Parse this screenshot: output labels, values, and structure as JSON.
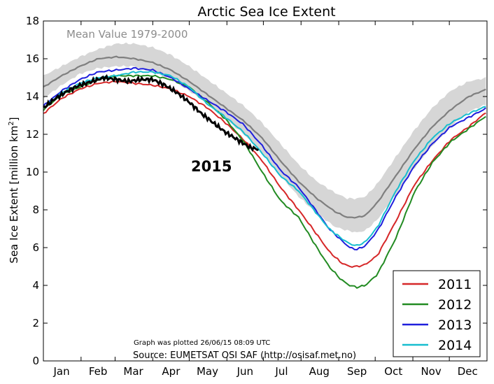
{
  "chart_data": {
    "type": "line",
    "title": "Arctic Sea Ice Extent",
    "ylabel": "Sea Ice Extent [million km",
    "ylabel_sup": "2",
    "ylabel_end": "]",
    "ylim": [
      0,
      18
    ],
    "yticks": [
      "0",
      "2",
      "4",
      "6",
      "8",
      "10",
      "12",
      "14",
      "16",
      "18"
    ],
    "xlim": [
      0,
      365
    ],
    "month_labels": [
      "Jan",
      "Feb",
      "Mar",
      "Apr",
      "May",
      "Jun",
      "Jul",
      "Aug",
      "Sep",
      "Oct",
      "Nov",
      "Dec"
    ],
    "month_label_days": [
      15,
      45,
      74,
      105,
      135,
      166,
      196,
      227,
      258,
      288,
      319,
      349
    ],
    "month_boundary_days": [
      31,
      59,
      90,
      120,
      151,
      181,
      212,
      243,
      273,
      304,
      334
    ],
    "grid": false,
    "legend_position": "lower-right",
    "mean_label": "Mean Value 1979-2000",
    "annotation_2015": "2015",
    "plotted_note": "Graph was plotted 26/06/15 08:09 UTC",
    "source_note": "Source: EUMETSAT OSI SAF (http://osisaf.met.no)",
    "band": {
      "days": [
        0,
        15,
        30,
        45,
        60,
        75,
        90,
        105,
        120,
        135,
        150,
        165,
        180,
        195,
        210,
        225,
        240,
        250,
        258,
        265,
        275,
        290,
        305,
        320,
        335,
        350,
        365
      ],
      "upper": [
        15.1,
        15.6,
        16.1,
        16.5,
        16.8,
        16.8,
        16.6,
        16.2,
        15.6,
        14.9,
        14.2,
        13.5,
        12.6,
        11.5,
        10.4,
        9.5,
        8.9,
        8.6,
        8.6,
        8.7,
        9.4,
        10.8,
        12.2,
        13.4,
        14.3,
        14.8,
        15.0
      ],
      "lower": [
        13.9,
        14.6,
        15.2,
        15.5,
        15.6,
        15.6,
        15.3,
        14.9,
        14.3,
        13.6,
        12.8,
        12.0,
        11.0,
        9.8,
        8.7,
        7.8,
        7.1,
        6.9,
        6.8,
        6.9,
        7.5,
        8.8,
        10.2,
        11.4,
        12.4,
        13.2,
        13.6
      ]
    },
    "mean": {
      "days": [
        0,
        15,
        30,
        45,
        60,
        75,
        90,
        105,
        120,
        135,
        150,
        165,
        180,
        195,
        210,
        225,
        240,
        250,
        258,
        265,
        275,
        290,
        305,
        320,
        335,
        350,
        365
      ],
      "values": [
        14.5,
        15.1,
        15.6,
        16.0,
        16.1,
        16.0,
        15.8,
        15.4,
        14.8,
        14.1,
        13.4,
        12.7,
        11.8,
        10.6,
        9.5,
        8.6,
        7.9,
        7.6,
        7.6,
        7.7,
        8.4,
        9.8,
        11.2,
        12.4,
        13.3,
        14.0,
        14.4
      ]
    },
    "series": [
      {
        "name": "2011",
        "color": "#d62728",
        "days": [
          0,
          15,
          30,
          45,
          60,
          75,
          90,
          105,
          120,
          135,
          150,
          165,
          180,
          195,
          210,
          225,
          235,
          245,
          252,
          258,
          265,
          275,
          290,
          305,
          320,
          335,
          350,
          365
        ],
        "values": [
          13.1,
          13.9,
          14.4,
          14.7,
          14.8,
          14.7,
          14.6,
          14.4,
          14.0,
          13.4,
          12.6,
          11.7,
          10.6,
          9.2,
          8.0,
          6.7,
          5.8,
          5.2,
          5.0,
          5.0,
          5.1,
          5.6,
          7.4,
          9.3,
          10.6,
          11.7,
          12.4,
          13.2
        ]
      },
      {
        "name": "2012",
        "color": "#228b22",
        "days": [
          0,
          15,
          30,
          45,
          60,
          75,
          90,
          105,
          120,
          135,
          150,
          165,
          180,
          195,
          210,
          225,
          235,
          245,
          252,
          258,
          265,
          275,
          290,
          305,
          320,
          335,
          350,
          365
        ],
        "values": [
          13.3,
          14.1,
          14.5,
          14.9,
          15.1,
          15.1,
          15.1,
          14.9,
          14.5,
          13.7,
          12.8,
          11.6,
          10.0,
          8.5,
          7.6,
          6.0,
          5.0,
          4.3,
          4.0,
          3.9,
          4.0,
          4.6,
          6.5,
          8.9,
          10.5,
          11.6,
          12.3,
          13.0
        ]
      },
      {
        "name": "2013",
        "color": "#1f1fdd",
        "days": [
          0,
          15,
          30,
          45,
          60,
          75,
          90,
          105,
          120,
          135,
          150,
          165,
          180,
          195,
          210,
          225,
          235,
          245,
          252,
          258,
          265,
          275,
          290,
          305,
          320,
          335,
          350,
          365
        ],
        "values": [
          13.5,
          14.3,
          14.9,
          15.3,
          15.4,
          15.5,
          15.4,
          15.0,
          14.4,
          13.8,
          13.2,
          12.5,
          11.4,
          10.1,
          9.2,
          7.9,
          7.0,
          6.4,
          6.0,
          5.9,
          6.1,
          6.9,
          8.7,
          10.3,
          11.5,
          12.4,
          12.9,
          13.4
        ]
      },
      {
        "name": "2014",
        "color": "#17becf",
        "days": [
          0,
          15,
          30,
          45,
          60,
          75,
          90,
          105,
          120,
          135,
          150,
          165,
          180,
          195,
          210,
          225,
          235,
          245,
          252,
          258,
          265,
          275,
          290,
          305,
          320,
          335,
          350,
          365
        ],
        "values": [
          13.4,
          14.2,
          14.7,
          15.0,
          15.1,
          15.3,
          15.3,
          15.1,
          14.5,
          13.6,
          12.9,
          12.1,
          11.0,
          9.8,
          9.0,
          7.8,
          7.0,
          6.5,
          6.2,
          6.1,
          6.3,
          7.1,
          9.0,
          10.6,
          11.8,
          12.6,
          13.1,
          13.5
        ]
      }
    ],
    "series_2015": {
      "name": "2015",
      "color": "#000000",
      "days": [
        0,
        10,
        20,
        30,
        40,
        50,
        60,
        70,
        80,
        90,
        100,
        110,
        120,
        130,
        140,
        150,
        160,
        170,
        177
      ],
      "values": [
        13.4,
        13.9,
        14.3,
        14.6,
        14.8,
        15.0,
        14.9,
        14.8,
        14.9,
        14.9,
        14.6,
        14.2,
        13.7,
        13.1,
        12.6,
        12.1,
        11.7,
        11.3,
        11.2
      ]
    }
  }
}
